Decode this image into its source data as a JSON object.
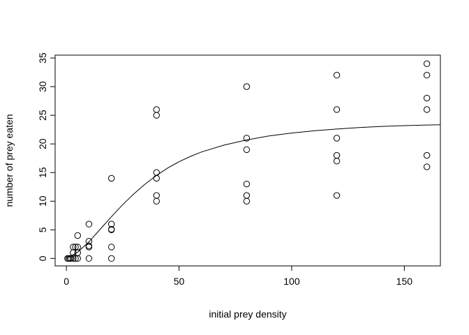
{
  "chart_data": {
    "type": "scatter",
    "title": "",
    "xlabel": "initial prey density",
    "ylabel": "number of prey eaten",
    "xlim": [
      -5,
      166
    ],
    "ylim": [
      -1.3,
      35.5
    ],
    "xticks": [
      0,
      50,
      100,
      150
    ],
    "yticks": [
      0,
      5,
      10,
      15,
      20,
      25,
      30,
      35
    ],
    "grid": false,
    "points": [
      {
        "x": 0.5,
        "y": 0
      },
      {
        "x": 1,
        "y": 0
      },
      {
        "x": 1.5,
        "y": 0
      },
      {
        "x": 2,
        "y": 0
      },
      {
        "x": 3,
        "y": 0
      },
      {
        "x": 3,
        "y": 1
      },
      {
        "x": 3,
        "y": 2
      },
      {
        "x": 4,
        "y": 0
      },
      {
        "x": 4,
        "y": 2
      },
      {
        "x": 5,
        "y": 1
      },
      {
        "x": 5,
        "y": 2
      },
      {
        "x": 5,
        "y": 4
      },
      {
        "x": 5,
        "y": 0
      },
      {
        "x": 10,
        "y": 0
      },
      {
        "x": 10,
        "y": 2
      },
      {
        "x": 10,
        "y": 2.2
      },
      {
        "x": 10,
        "y": 3
      },
      {
        "x": 10,
        "y": 6
      },
      {
        "x": 20,
        "y": 0
      },
      {
        "x": 20,
        "y": 2
      },
      {
        "x": 20,
        "y": 5
      },
      {
        "x": 20,
        "y": 5.1
      },
      {
        "x": 20,
        "y": 6
      },
      {
        "x": 20,
        "y": 14
      },
      {
        "x": 40,
        "y": 10
      },
      {
        "x": 40,
        "y": 11
      },
      {
        "x": 40,
        "y": 14
      },
      {
        "x": 40,
        "y": 15
      },
      {
        "x": 40,
        "y": 25
      },
      {
        "x": 40,
        "y": 26
      },
      {
        "x": 80,
        "y": 10
      },
      {
        "x": 80,
        "y": 11
      },
      {
        "x": 80,
        "y": 13
      },
      {
        "x": 80,
        "y": 19
      },
      {
        "x": 80,
        "y": 21
      },
      {
        "x": 80,
        "y": 30
      },
      {
        "x": 120,
        "y": 11
      },
      {
        "x": 120,
        "y": 17
      },
      {
        "x": 120,
        "y": 18
      },
      {
        "x": 120,
        "y": 21
      },
      {
        "x": 120,
        "y": 26
      },
      {
        "x": 120,
        "y": 32
      },
      {
        "x": 160,
        "y": 16
      },
      {
        "x": 160,
        "y": 18
      },
      {
        "x": 160,
        "y": 26
      },
      {
        "x": 160,
        "y": 28
      },
      {
        "x": 160,
        "y": 32
      },
      {
        "x": 160,
        "y": 34
      }
    ],
    "curve": {
      "x": [
        0,
        5,
        10,
        15,
        20,
        25,
        30,
        35,
        40,
        45,
        50,
        55,
        60,
        70,
        80,
        90,
        100,
        110,
        120,
        130,
        140,
        150,
        160,
        166
      ],
      "y": [
        0,
        1.1,
        2.9,
        5.1,
        7.3,
        9.4,
        11.3,
        13.0,
        14.5,
        15.8,
        16.9,
        17.8,
        18.6,
        19.8,
        20.7,
        21.4,
        21.9,
        22.3,
        22.6,
        22.85,
        23.05,
        23.2,
        23.3,
        23.35
      ]
    }
  }
}
